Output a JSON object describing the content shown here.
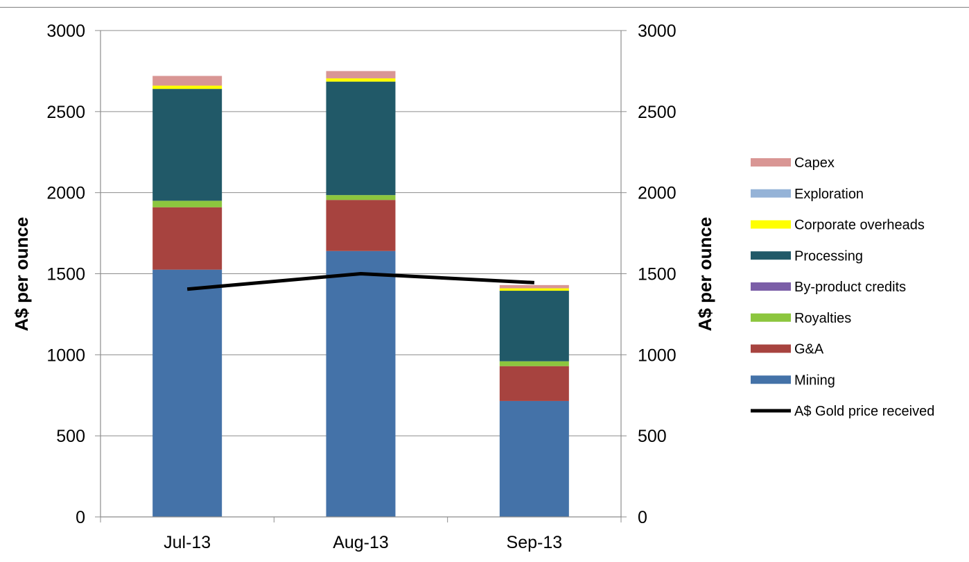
{
  "chart_data": {
    "type": "bar",
    "stacked": true,
    "categories": [
      "Jul-13",
      "Aug-13",
      "Sep-13"
    ],
    "ylabel": "A$ per ounce",
    "ylabel_right": "A$ per ounce",
    "ylim": [
      0,
      3000
    ],
    "yticks": [
      0,
      500,
      1000,
      1500,
      2000,
      2500,
      3000
    ],
    "grid": true,
    "legend_position": "right",
    "series": [
      {
        "name": "Mining",
        "color": "#4472a8",
        "kind": "bar",
        "values": [
          1525,
          1640,
          715
        ]
      },
      {
        "name": "G&A",
        "color": "#a7433f",
        "kind": "bar",
        "values": [
          385,
          315,
          215
        ]
      },
      {
        "name": "Royalties",
        "color": "#8cc63e",
        "kind": "bar",
        "values": [
          40,
          30,
          30
        ]
      },
      {
        "name": "By-product credits",
        "color": "#7b5ea7",
        "kind": "bar",
        "values": [
          0,
          0,
          0
        ]
      },
      {
        "name": "Processing",
        "color": "#215968",
        "kind": "bar",
        "values": [
          690,
          700,
          435
        ]
      },
      {
        "name": "Corporate overheads",
        "color": "#ffff00",
        "kind": "bar",
        "values": [
          20,
          20,
          15
        ]
      },
      {
        "name": "Exploration",
        "color": "#95b3d7",
        "kind": "bar",
        "values": [
          0,
          0,
          0
        ]
      },
      {
        "name": "Capex",
        "color": "#d99694",
        "kind": "bar",
        "values": [
          60,
          45,
          20
        ]
      },
      {
        "name": "A$ Gold price received",
        "color": "#000000",
        "kind": "line",
        "values": [
          1405,
          1500,
          1445
        ]
      }
    ],
    "legend_order": [
      "Capex",
      "Exploration",
      "Corporate overheads",
      "Processing",
      "By-product credits",
      "Royalties",
      "G&A",
      "Mining",
      "A$ Gold price received"
    ]
  }
}
